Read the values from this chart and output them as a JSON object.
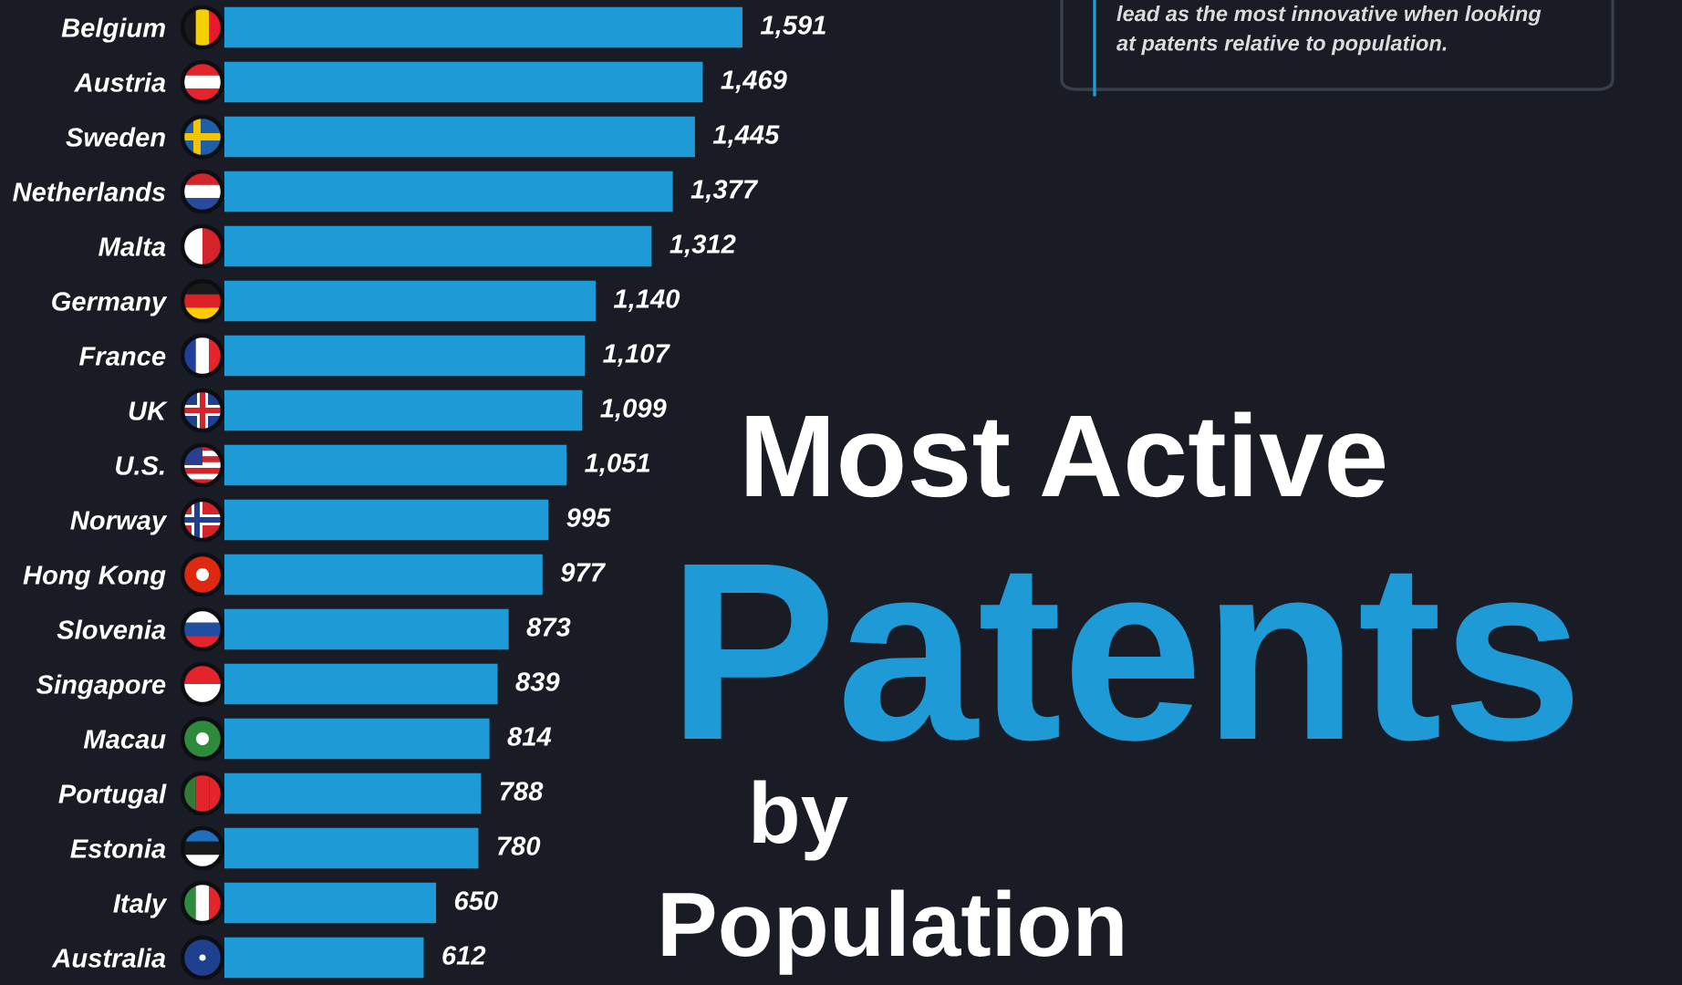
{
  "chart_data": {
    "type": "bar",
    "orientation": "horizontal",
    "title": "Most Active\nPatents\nby\nPopulation",
    "annotations": [
      "lead as the most innovative when looking\nat patents relative to population."
    ],
    "categories": [
      "Belgium",
      "Austria",
      "Sweden",
      "Netherlands",
      "Malta",
      "Germany",
      "France",
      "UK",
      "U.S.",
      "Norway",
      "Hong Kong",
      "Slovenia",
      "Singapore",
      "Macau",
      "Portugal",
      "Estonia",
      "Italy",
      "Australia"
    ],
    "values": [
      1591,
      1469,
      1445,
      1377,
      1312,
      1140,
      1107,
      1099,
      1051,
      995,
      977,
      873,
      839,
      814,
      788,
      780,
      650,
      612
    ],
    "value_labels": [
      "1,591",
      "1,469",
      "1,445",
      "1,377",
      "1,312",
      "1,140",
      "1,107",
      "1,099",
      "1,051",
      "995",
      "977",
      "873",
      "839",
      "814",
      "788",
      "780",
      "650",
      "612"
    ],
    "color": "#1e9ad6"
  }
}
